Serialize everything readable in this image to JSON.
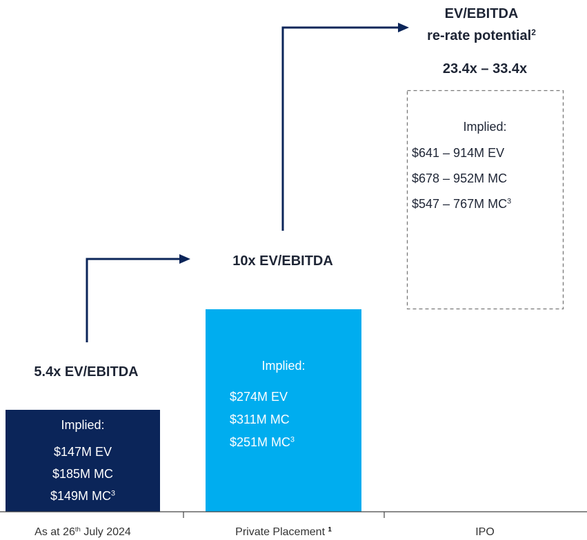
{
  "columns": [
    {
      "multiple": "5.4x EV/EBITDA",
      "implied": {
        "heading": "Implied:",
        "lines": [
          {
            "text": "$147M EV"
          },
          {
            "text": "$185M MC"
          },
          {
            "text": "$149M MC",
            "note": "3"
          }
        ]
      },
      "label": {
        "text": "As at 26",
        "sup": "th",
        "rest": "July 2024"
      }
    },
    {
      "multiple": "10x EV/EBITDA",
      "implied": {
        "heading": "Implied:",
        "lines": [
          {
            "text": "$274M EV"
          },
          {
            "text": "$311M MC"
          },
          {
            "text": "$251M MC",
            "note": "3"
          }
        ]
      },
      "label": {
        "text": "Private Placement",
        "note": "1"
      }
    },
    {
      "heading": {
        "line1": "EV/EBITDA",
        "line2": "re-rate potential",
        "note": "2"
      },
      "range": "23.4x – 33.4x",
      "implied": {
        "heading": "Implied:",
        "lines": [
          {
            "text": "$641 – 914M EV"
          },
          {
            "text": "$678 – 952M MC"
          },
          {
            "text": "$547 – 767M MC",
            "note": "3"
          }
        ]
      },
      "label": {
        "text": "IPO"
      }
    }
  ]
}
